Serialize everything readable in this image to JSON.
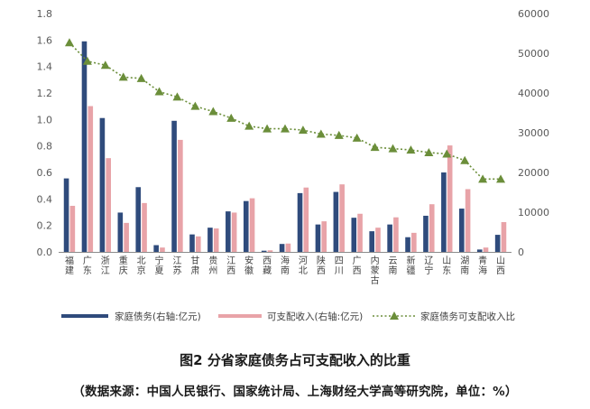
{
  "chart_data": {
    "type": "bar",
    "title": "图2 分省家庭债务占可支配收入的比重",
    "source": "（数据来源：中国人民银行、国家统计局、上海财经大学高等研究院，单位：%）",
    "categories": [
      "福建",
      "广东",
      "浙江",
      "重庆",
      "北京",
      "宁夏",
      "江苏",
      "甘肃",
      "贵州",
      "江西",
      "安徽",
      "西藏",
      "海南",
      "河北",
      "陕西",
      "四川",
      "广西",
      "内蒙古",
      "云南",
      "新疆",
      "辽宁",
      "山东",
      "湖南",
      "青海",
      "山西"
    ],
    "series": [
      {
        "name": "家庭债务(右轴:亿元)",
        "axis": "right",
        "color": "#2f4b7c",
        "values": [
          18500,
          53000,
          33700,
          9900,
          16300,
          1700,
          33000,
          4400,
          6100,
          10200,
          12800,
          300,
          2000,
          14800,
          6900,
          15100,
          8600,
          5200,
          6900,
          3700,
          9100,
          20000,
          10900,
          600,
          4300
        ]
      },
      {
        "name": "可支配收入(右轴:亿元)",
        "axis": "right",
        "color": "#e8a3a8",
        "values": [
          11600,
          36700,
          23600,
          7300,
          12300,
          1100,
          28200,
          3900,
          5900,
          9900,
          13500,
          400,
          2100,
          16200,
          7700,
          17000,
          9600,
          6100,
          8700,
          4800,
          12000,
          26800,
          15800,
          1100,
          7500
        ]
      },
      {
        "name": "家庭债务可支配收入比",
        "axis": "left",
        "color": "#6b8e3a",
        "values": [
          1.58,
          1.44,
          1.41,
          1.32,
          1.31,
          1.21,
          1.17,
          1.1,
          1.06,
          1.01,
          0.95,
          0.93,
          0.93,
          0.92,
          0.89,
          0.88,
          0.86,
          0.79,
          0.78,
          0.77,
          0.75,
          0.74,
          0.69,
          0.55,
          0.55
        ]
      }
    ],
    "y_left": {
      "min": 0,
      "max": 1.8,
      "ticks": [
        "0.0",
        "0.2",
        "0.4",
        "0.6",
        "0.8",
        "1.0",
        "1.2",
        "1.4",
        "1.6",
        "1.8"
      ]
    },
    "y_right": {
      "min": 0,
      "max": 60000,
      "ticks": [
        "0",
        "10000",
        "20000",
        "30000",
        "40000",
        "50000",
        "60000"
      ]
    },
    "legend_position": "bottom",
    "grid": false
  }
}
